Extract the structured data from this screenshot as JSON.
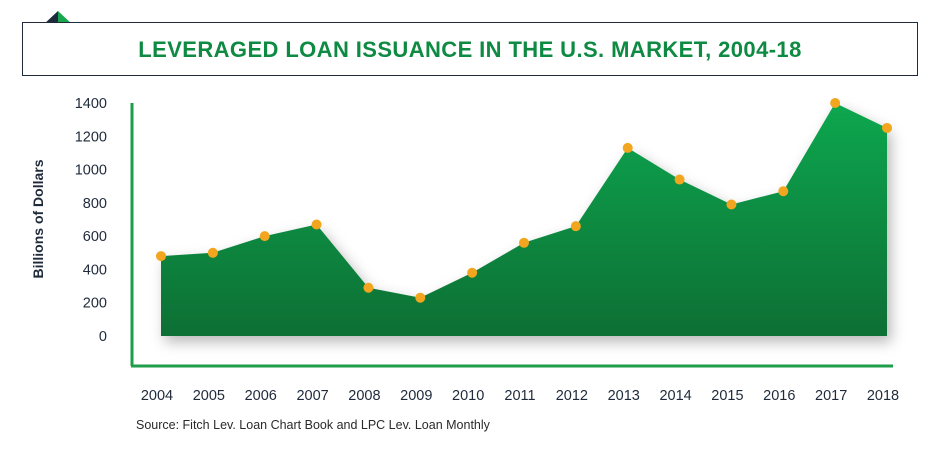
{
  "title": "LEVERAGED LOAN ISSUANCE IN THE U.S. MARKET, 2004-18",
  "source": "Source: Fitch Lev. Loan Chart Book and LPC Lev. Loan Monthly",
  "colors": {
    "title": "#0e8a43",
    "area_top": "#11a74f",
    "area_bottom": "#0a6f34",
    "marker": "#f2a51f",
    "axis": "#1f9e4a",
    "border": "#1f2a3a"
  },
  "chart_data": {
    "type": "area",
    "ylabel": "Billions of Dollars",
    "xlabel": "",
    "ylim": [
      0,
      1400
    ],
    "yticks": [
      0,
      200,
      400,
      600,
      800,
      1000,
      1200,
      1400
    ],
    "grid": false,
    "categories": [
      "2004",
      "2005",
      "2006",
      "2007",
      "2008",
      "2009",
      "2010",
      "2011",
      "2012",
      "2013",
      "2014",
      "2015",
      "2016",
      "2017",
      "2018"
    ],
    "values": [
      480,
      500,
      600,
      670,
      290,
      230,
      380,
      560,
      660,
      1130,
      940,
      790,
      870,
      1400,
      1250
    ]
  }
}
